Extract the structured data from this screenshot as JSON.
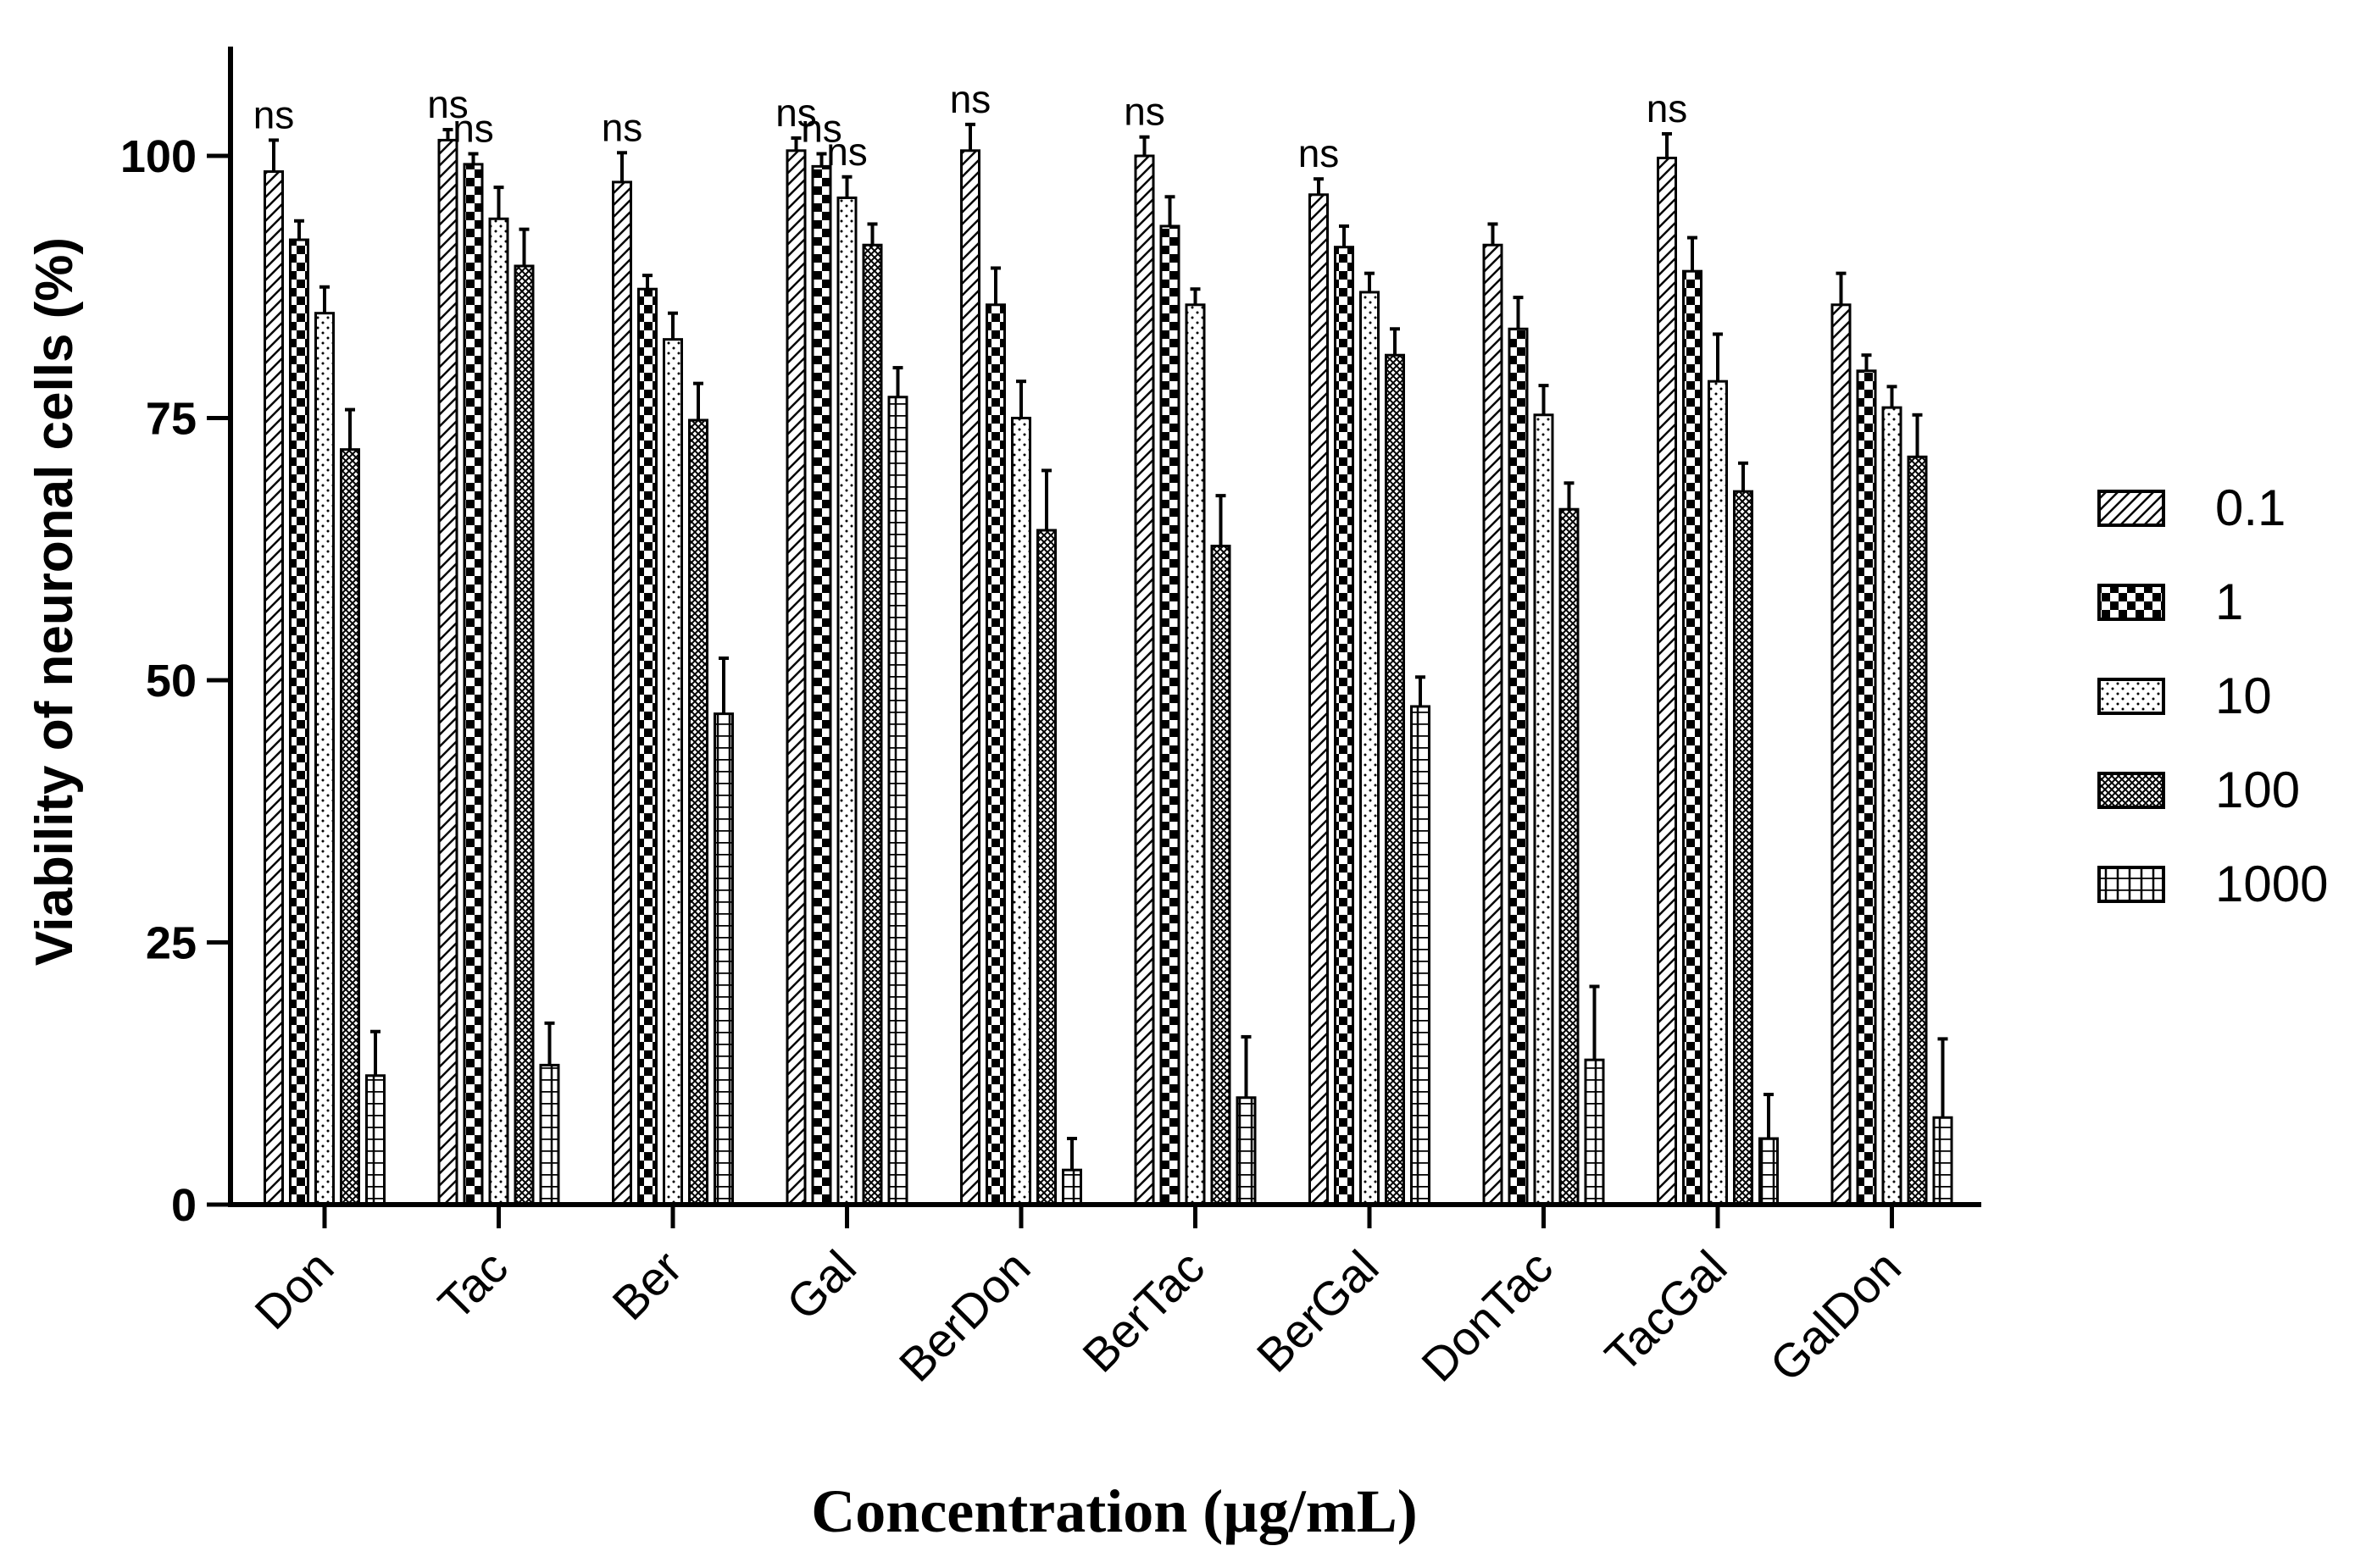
{
  "chart_data": {
    "type": "bar",
    "title": "",
    "xlabel": "Concentration (µg/mL)",
    "ylabel": "Viability of neuronal cells (%)",
    "ylim": [
      0,
      110
    ],
    "yticks": [
      0,
      25,
      50,
      75,
      100
    ],
    "ytick_labels": [
      "0",
      "25",
      "50",
      "75",
      "100"
    ],
    "categories": [
      "Don",
      "Tac",
      "Ber",
      "Gal",
      "BerDon",
      "BerTac",
      "BerGal",
      "DonTac",
      "TacGal",
      "GalDon"
    ],
    "legend_position": "right",
    "series": [
      {
        "name": "0.1",
        "pattern": "diagonal",
        "values": [
          98.5,
          101.5,
          97.5,
          100.5,
          100.5,
          100,
          96.3,
          91.5,
          99.8,
          85.8
        ],
        "errors": [
          3,
          1,
          2.8,
          1.2,
          2.5,
          1.8,
          1.5,
          2,
          2.3,
          3
        ]
      },
      {
        "name": "1",
        "pattern": "checker",
        "values": [
          92,
          99.2,
          87.3,
          99,
          85.8,
          93.3,
          91.3,
          83.5,
          89,
          79.5
        ],
        "errors": [
          1.8,
          1,
          1.3,
          1.2,
          3.5,
          2.8,
          2,
          3,
          3.2,
          1.5
        ]
      },
      {
        "name": "10",
        "pattern": "dots",
        "values": [
          85,
          94,
          82.5,
          96,
          75,
          85.8,
          87,
          75.3,
          78.5,
          76
        ],
        "errors": [
          2.5,
          3,
          2.5,
          2,
          3.5,
          1.5,
          1.8,
          2.8,
          4.5,
          2
        ]
      },
      {
        "name": "100",
        "pattern": "crosshatch",
        "values": [
          72,
          89.5,
          74.8,
          91.5,
          64.3,
          62.8,
          81,
          66.3,
          68,
          71.3
        ],
        "errors": [
          3.8,
          3.5,
          3.5,
          2,
          5.7,
          4.8,
          2.5,
          2.5,
          2.7,
          4
        ]
      },
      {
        "name": "1000",
        "pattern": "grid",
        "values": [
          12.3,
          13.3,
          46.8,
          77,
          3.3,
          10.2,
          47.5,
          13.8,
          6.3,
          8.3
        ],
        "errors": [
          4.2,
          4,
          5.3,
          2.8,
          3,
          5.8,
          2.8,
          7,
          4.2,
          7.5
        ]
      }
    ],
    "annotations": [
      {
        "text": "ns",
        "category": "Don",
        "series": "0.1"
      },
      {
        "text": "ns",
        "category": "Tac",
        "series": "0.1"
      },
      {
        "text": "ns",
        "category": "Tac",
        "series": "1"
      },
      {
        "text": "ns",
        "category": "Ber",
        "series": "0.1"
      },
      {
        "text": "ns",
        "category": "Gal",
        "series": "0.1"
      },
      {
        "text": "ns",
        "category": "Gal",
        "series": "1"
      },
      {
        "text": "ns",
        "category": "Gal",
        "series": "10"
      },
      {
        "text": "ns",
        "category": "BerDon",
        "series": "0.1"
      },
      {
        "text": "ns",
        "category": "BerTac",
        "series": "0.1"
      },
      {
        "text": "ns",
        "category": "BerGal",
        "series": "0.1"
      },
      {
        "text": "ns",
        "category": "TacGal",
        "series": "0.1"
      }
    ]
  }
}
